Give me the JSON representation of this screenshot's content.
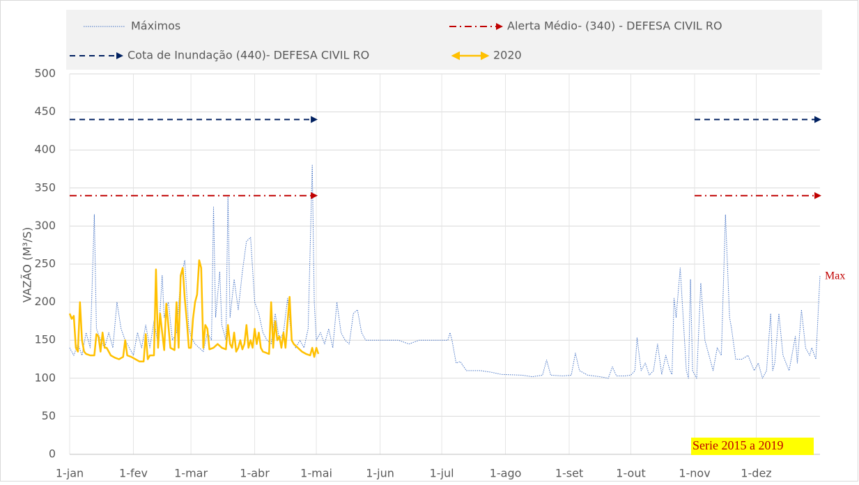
{
  "chart_data": {
    "type": "line",
    "y_label": "VAZÃO (M³/S)",
    "ylim": [
      0,
      500
    ],
    "yticks": [
      0,
      50,
      100,
      150,
      200,
      250,
      300,
      350,
      400,
      450,
      500
    ],
    "xlim": [
      0,
      365
    ],
    "xticks": [
      {
        "value": 0,
        "label": "1-jan"
      },
      {
        "value": 31,
        "label": "1-fev"
      },
      {
        "value": 59,
        "label": "1-mar"
      },
      {
        "value": 90,
        "label": "1-abr"
      },
      {
        "value": 120,
        "label": "1-mai"
      },
      {
        "value": 151,
        "label": "1-jun"
      },
      {
        "value": 181,
        "label": "1-jul"
      },
      {
        "value": 212,
        "label": "1-ago"
      },
      {
        "value": 243,
        "label": "1-set"
      },
      {
        "value": 273,
        "label": "1-out"
      },
      {
        "value": 304,
        "label": "1-nov"
      },
      {
        "value": 334,
        "label": "1-dez"
      }
    ],
    "grid": true,
    "annotations": [
      "Max",
      "Serie 2015 a 2019"
    ],
    "series": [
      {
        "name": "Máximos",
        "color": "#4472c4",
        "style": "dotted",
        "x": [
          0,
          2,
          4,
          6,
          8,
          10,
          12,
          13,
          15,
          17,
          19,
          21,
          23,
          25,
          27,
          29,
          31,
          33,
          35,
          37,
          39,
          41,
          43,
          45,
          46,
          48,
          50,
          52,
          54,
          56,
          58,
          59,
          61,
          63,
          65,
          67,
          69,
          70,
          71,
          73,
          74,
          76,
          77,
          78,
          80,
          82,
          84,
          86,
          88,
          90,
          92,
          94,
          96,
          98,
          100,
          102,
          104,
          106,
          108,
          110,
          112,
          114,
          116,
          118,
          119,
          120,
          122,
          124,
          126,
          128,
          130,
          132,
          134,
          136,
          138,
          140,
          142,
          144,
          150,
          155,
          160,
          165,
          170,
          175,
          180,
          184,
          185,
          186,
          188,
          190,
          193,
          200,
          205,
          210,
          220,
          225,
          230,
          232,
          234,
          240,
          244,
          246,
          248,
          252,
          258,
          262,
          264,
          266,
          270,
          273,
          275,
          276,
          278,
          280,
          282,
          284,
          286,
          288,
          290,
          292,
          293,
          294,
          295,
          297,
          298,
          300,
          301,
          302,
          303,
          305,
          307,
          309,
          311,
          313,
          315,
          317,
          319,
          321,
          322,
          324,
          327,
          330,
          333,
          335,
          337,
          339,
          341,
          342,
          343,
          345,
          347,
          350,
          353,
          354,
          356,
          358,
          360,
          361,
          363,
          365
        ],
        "values": [
          140,
          130,
          145,
          130,
          160,
          140,
          315,
          165,
          150,
          140,
          160,
          140,
          200,
          165,
          150,
          140,
          130,
          160,
          140,
          170,
          140,
          175,
          145,
          235,
          180,
          200,
          150,
          160,
          230,
          255,
          165,
          155,
          145,
          140,
          135,
          160,
          150,
          325,
          180,
          240,
          170,
          150,
          340,
          180,
          230,
          190,
          240,
          280,
          285,
          200,
          185,
          160,
          150,
          145,
          185,
          150,
          160,
          205,
          150,
          140,
          150,
          140,
          165,
          380,
          200,
          150,
          160,
          145,
          165,
          140,
          200,
          160,
          150,
          145,
          185,
          190,
          160,
          150,
          150,
          150,
          150,
          145,
          150,
          150,
          150,
          150,
          160,
          150,
          120,
          122,
          110,
          110,
          108,
          105,
          104,
          102,
          104,
          124,
          104,
          103,
          104,
          133,
          110,
          104,
          102,
          100,
          115,
          103,
          103,
          104,
          110,
          153,
          110,
          120,
          104,
          110,
          145,
          105,
          130,
          110,
          105,
          205,
          180,
          245,
          200,
          110,
          100,
          230,
          110,
          100,
          225,
          150,
          130,
          110,
          140,
          130,
          315,
          180,
          165,
          125,
          125,
          130,
          110,
          120,
          100,
          110,
          185,
          110,
          120,
          185,
          130,
          110,
          155,
          120,
          190,
          140,
          130,
          140,
          125,
          235
        ]
      },
      {
        "name": "Alerta Médio-  (340) - DEFESA CIVIL RO",
        "color": "#c00000",
        "style": "dashdot",
        "marker": "arrow",
        "x": [
          0,
          120,
          121,
          304,
          365
        ],
        "values": [
          340,
          340,
          null,
          340,
          340
        ]
      },
      {
        "name": "Cota de Inundação  (440)- DEFESA CIVIL RO",
        "color": "#002060",
        "style": "dash",
        "marker": "arrow",
        "x": [
          0,
          120,
          121,
          304,
          365
        ],
        "values": [
          440,
          440,
          null,
          440,
          440
        ]
      },
      {
        "name": "2020",
        "color": "#ffc000",
        "style": "solid",
        "x": [
          0,
          1,
          2,
          3,
          4,
          5,
          6,
          7,
          8,
          10,
          12,
          13,
          14,
          15,
          16,
          17,
          18,
          20,
          22,
          24,
          26,
          27,
          28,
          30,
          32,
          34,
          36,
          37,
          38,
          39,
          41,
          42,
          43,
          44,
          45,
          46,
          47,
          48,
          49,
          51,
          52,
          53,
          54,
          55,
          56,
          57,
          58,
          59,
          60,
          61,
          62,
          63,
          64,
          65,
          66,
          67,
          68,
          70,
          72,
          74,
          76,
          77,
          78,
          79,
          80,
          81,
          82,
          83,
          84,
          85,
          86,
          87,
          88,
          89,
          90,
          91,
          92,
          93,
          94,
          96,
          97,
          98,
          99,
          100,
          101,
          102,
          103,
          104,
          105,
          107,
          108,
          109,
          111,
          113,
          115,
          117,
          118,
          119,
          120,
          121
        ],
        "values": [
          185,
          178,
          182,
          140,
          135,
          200,
          150,
          135,
          132,
          130,
          130,
          158,
          155,
          135,
          160,
          140,
          140,
          130,
          127,
          125,
          128,
          150,
          130,
          128,
          125,
          122,
          122,
          158,
          125,
          130,
          130,
          243,
          140,
          185,
          160,
          137,
          198,
          170,
          140,
          137,
          200,
          140,
          235,
          245,
          205,
          175,
          140,
          140,
          178,
          200,
          210,
          255,
          245,
          140,
          170,
          165,
          138,
          140,
          145,
          140,
          138,
          170,
          145,
          140,
          160,
          135,
          140,
          150,
          138,
          145,
          170,
          140,
          150,
          140,
          165,
          145,
          160,
          140,
          135,
          133,
          132,
          200,
          140,
          175,
          150,
          155,
          140,
          160,
          140,
          207,
          150,
          145,
          140,
          135,
          132,
          130,
          140,
          128,
          140,
          132
        ]
      }
    ]
  }
}
